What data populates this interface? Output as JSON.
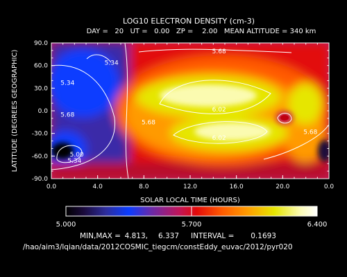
{
  "chart_data": {
    "type": "heatmap",
    "title": "LOG10 ELECTRON DENSITY (cm-3)",
    "subtitle": "DAY =   20   UT =   0.00   ZP =    2.00   MEAN ALTITUDE = 340 km",
    "xlabel": "SOLAR LOCAL TIME (HOURS)",
    "ylabel": "LATITUDE (DEGREES GEOGRAPHIC)",
    "xlim": [
      0,
      24
    ],
    "ylim": [
      -90,
      90
    ],
    "x_ticks": [
      "0.0",
      "4.0",
      "8.0",
      "12.0",
      "16.0",
      "20.0",
      "0.0"
    ],
    "y_ticks": [
      "90.0",
      "60.0",
      "30.0",
      "0.0",
      "-30.0",
      "-60.0",
      "-90.0"
    ],
    "colorbar": {
      "min_label": "5.000",
      "mid_label": "5.700",
      "max_label": "6.400",
      "range": [
        5.0,
        6.4
      ]
    },
    "contour_labels": [
      {
        "text": "5.68",
        "x": 14.5,
        "y": 79
      },
      {
        "text": "5.34",
        "x": 5.2,
        "y": 64
      },
      {
        "text": "5.34",
        "x": 1.4,
        "y": 37
      },
      {
        "text": "5.68",
        "x": 1.4,
        "y": -5
      },
      {
        "text": "5.68",
        "x": 8.4,
        "y": -15
      },
      {
        "text": "6.02",
        "x": 14.5,
        "y": 2
      },
      {
        "text": "6.02",
        "x": 14.5,
        "y": -36
      },
      {
        "text": "5.68",
        "x": 22.4,
        "y": -28
      },
      {
        "text": "5.00",
        "x": 2.2,
        "y": -58
      },
      {
        "text": "5.34",
        "x": 2.0,
        "y": -66
      }
    ],
    "stats": {
      "min_label": "MIN,MAX =",
      "min": "4.813,",
      "max": "6.337",
      "interval_label": "INTERVAL =",
      "interval": "0.1693"
    },
    "grid": false
  },
  "footer_path": "/hao/aim3/lqian/data/2012COSMIC_tiegcm/constEddy_euvac/2012/pyr020"
}
